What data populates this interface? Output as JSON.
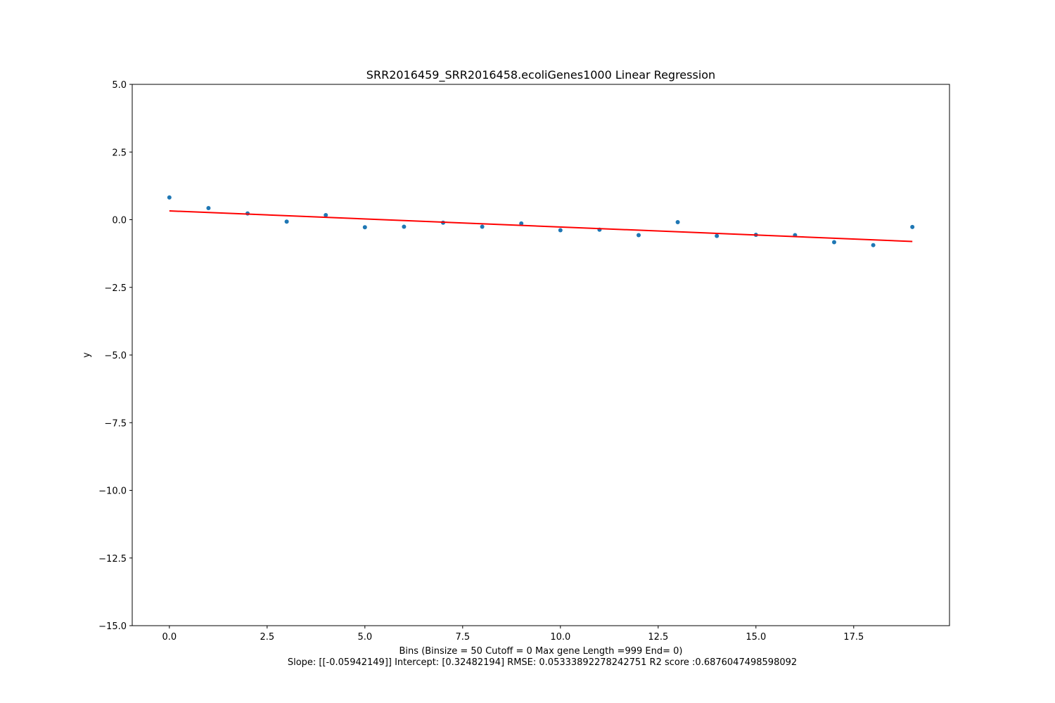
{
  "chart_data": {
    "type": "scatter",
    "title": "SRR2016459_SRR2016458.ecoliGenes1000 Linear Regression",
    "xlabel": "Bins  (Binsize = 50 Cutoff = 0 Max gene Length =999 End= 0)",
    "xlabel_line2": "Slope: [[-0.05942149]] Intercept: [0.32482194] RMSE: 0.05333892278242751 R2 score :0.6876047498598092",
    "ylabel": "y",
    "xlim": [
      -0.95,
      19.95
    ],
    "ylim": [
      -15,
      5
    ],
    "x_ticks": [
      0,
      2.5,
      5,
      7.5,
      10,
      12.5,
      15,
      17.5
    ],
    "x_tick_labels": [
      "0.0",
      "2.5",
      "5.0",
      "7.5",
      "10.0",
      "12.5",
      "15.0",
      "17.5"
    ],
    "y_ticks": [
      5,
      2.5,
      0,
      -2.5,
      -5,
      -7.5,
      -10,
      -12.5,
      -15
    ],
    "y_tick_labels": [
      "5.0",
      "2.5",
      "0.0",
      "−2.5",
      "−5.0",
      "−7.5",
      "−10.0",
      "−12.5",
      "−15.0"
    ],
    "grid": false,
    "series": [
      {
        "kind": "scatter",
        "color": "#1f77b4",
        "x": [
          0,
          1,
          2,
          3,
          4,
          5,
          6,
          7,
          8,
          9,
          10,
          11,
          12,
          13,
          14,
          15,
          16,
          17,
          18,
          19
        ],
        "y": [
          0.82,
          0.43,
          0.23,
          -0.07,
          0.17,
          -0.28,
          -0.26,
          -0.11,
          -0.26,
          -0.14,
          -0.39,
          -0.37,
          -0.57,
          -0.09,
          -0.6,
          -0.56,
          -0.57,
          -0.83,
          -0.94,
          -0.27
        ]
      },
      {
        "kind": "line",
        "color": "#ff0000",
        "x": [
          0,
          19
        ],
        "y": [
          0.32482194,
          -0.80418637
        ]
      }
    ]
  }
}
